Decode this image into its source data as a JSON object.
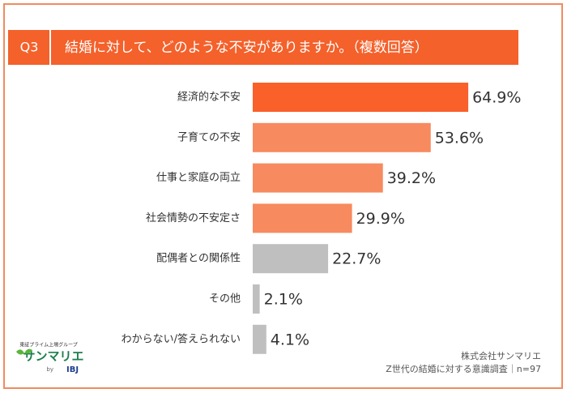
{
  "chart_data": {
    "type": "bar",
    "orientation": "horizontal",
    "question_no": "Q3",
    "title": "結婚に対して、どのような不安がありますか。（複数回答）",
    "categories": [
      "経済的な不安",
      "子育ての不安",
      "仕事と家庭の両立",
      "社会情勢の不安定さ",
      "配偶者との関係性",
      "その他",
      "わからない/答えられない"
    ],
    "values": [
      64.9,
      53.6,
      39.2,
      29.9,
      22.7,
      2.1,
      4.1
    ],
    "value_labels": [
      "64.9%",
      "53.6%",
      "39.2%",
      "29.9%",
      "22.7%",
      "2.1%",
      "4.1%"
    ],
    "colors": [
      "#f9602a",
      "#f78a5f",
      "#f78a5f",
      "#f78a5f",
      "#bfbfbf",
      "#bfbfbf",
      "#bfbfbf"
    ],
    "source": [
      "株式会社サンマリエ",
      "Z世代の結婚に対する意識調査｜n=97"
    ]
  },
  "logo": {
    "tagline": "東証プライム上場グループ",
    "brand": "サンマリエ",
    "by": "by",
    "parent": "IBJ"
  }
}
